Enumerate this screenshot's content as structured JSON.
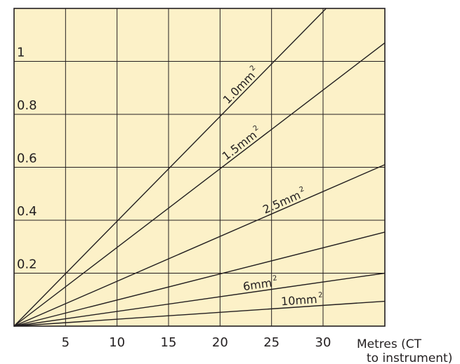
{
  "chart_data": {
    "type": "line",
    "title": "",
    "xlabel_lines": [
      "Metres (CT",
      "to instrument)"
    ],
    "ylabel": "",
    "xlim": [
      0,
      36
    ],
    "ylim": [
      0,
      1.2
    ],
    "x_ticks": [
      {
        "value": 5,
        "label": "5"
      },
      {
        "value": 10,
        "label": "10"
      },
      {
        "value": 15,
        "label": "15"
      },
      {
        "value": 20,
        "label": "20"
      },
      {
        "value": 25,
        "label": "25"
      },
      {
        "value": 30,
        "label": "30"
      }
    ],
    "y_ticks": [
      {
        "value": 0.2,
        "label": "0.2"
      },
      {
        "value": 0.4,
        "label": "0.4"
      },
      {
        "value": 0.6,
        "label": "0.6"
      },
      {
        "value": 0.8,
        "label": "0.8"
      },
      {
        "value": 1.0,
        "label": "1"
      }
    ],
    "grid": true,
    "colors": {
      "background": "#fcf1c8",
      "line": "#231f20"
    },
    "series": [
      {
        "label_base": "1.0mm",
        "label_sup": "2",
        "label_at_x": 22.5,
        "points": [
          [
            0,
            0
          ],
          [
            30.3,
            1.2
          ]
        ]
      },
      {
        "label_base": "1.5mm",
        "label_sup": "2",
        "label_at_x": 22.5,
        "points": [
          [
            0,
            0
          ],
          [
            36,
            1.07
          ]
        ]
      },
      {
        "label_base": "2.5mm",
        "label_sup": "2",
        "label_at_x": 26.5,
        "points": [
          [
            0,
            0
          ],
          [
            36,
            0.61
          ]
        ]
      },
      {
        "label_base": "",
        "label_sup": "",
        "label_at_x": null,
        "points": [
          [
            0,
            0
          ],
          [
            36,
            0.355
          ]
        ]
      },
      {
        "label_base": "6mm",
        "label_sup": "2",
        "label_at_x": 24,
        "points": [
          [
            0,
            0
          ],
          [
            36,
            0.2
          ]
        ]
      },
      {
        "label_base": "10mm",
        "label_sup": "2",
        "label_at_x": 28,
        "points": [
          [
            0,
            0
          ],
          [
            36,
            0.094
          ]
        ]
      }
    ]
  }
}
